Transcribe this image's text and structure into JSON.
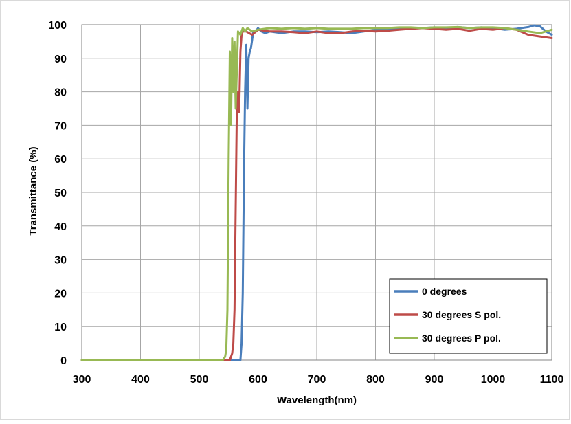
{
  "chart_data": {
    "type": "line",
    "title": "",
    "xlabel": "Wavelength(nm)",
    "ylabel": "Transmittance (%)",
    "xlim": [
      300,
      1100
    ],
    "ylim": [
      0,
      100
    ],
    "xticks": [
      "300",
      "400",
      "500",
      "600",
      "700",
      "800",
      "900",
      "1000",
      "1100"
    ],
    "yticks": [
      "0",
      "10",
      "20",
      "30",
      "40",
      "50",
      "60",
      "70",
      "80",
      "90",
      "100"
    ],
    "grid": true,
    "legend_position": "bottom-right",
    "series": [
      {
        "name": "0 degrees",
        "color": "#4a7ebb",
        "x": [
          300,
          560,
          570,
          572,
          574,
          576,
          578,
          580,
          582,
          584,
          586,
          588,
          592,
          596,
          600,
          606,
          612,
          620,
          640,
          660,
          680,
          700,
          720,
          740,
          760,
          780,
          800,
          820,
          840,
          860,
          880,
          900,
          920,
          940,
          960,
          980,
          1000,
          1020,
          1040,
          1060,
          1070,
          1080,
          1090,
          1100
        ],
        "y": [
          0,
          0,
          0,
          5,
          20,
          55,
          80,
          94,
          75,
          90,
          92,
          93,
          98,
          98,
          99,
          98,
          97.5,
          98,
          97.5,
          98,
          98,
          97.8,
          98,
          97.8,
          97.5,
          98,
          98.5,
          98.5,
          98.8,
          99,
          99,
          99.2,
          99,
          99.3,
          99,
          99.2,
          99,
          98.5,
          98.8,
          99.3,
          99.8,
          99.5,
          98,
          97
        ]
      },
      {
        "name": "30 degrees S pol.",
        "color": "#be4b48",
        "x": [
          300,
          545,
          552,
          556,
          558,
          560,
          562,
          564,
          566,
          568,
          570,
          572,
          574,
          576,
          580,
          590,
          600,
          620,
          640,
          660,
          680,
          700,
          720,
          740,
          760,
          780,
          800,
          820,
          840,
          860,
          880,
          900,
          920,
          940,
          960,
          980,
          1000,
          1020,
          1040,
          1060,
          1080,
          1100
        ],
        "y": [
          0,
          0,
          0,
          2,
          5,
          15,
          45,
          75,
          80,
          74,
          92,
          97,
          98,
          98,
          98,
          97,
          98.5,
          98,
          98,
          97.8,
          97.5,
          98,
          97.5,
          97.5,
          98,
          98.2,
          98,
          98.2,
          98.5,
          98.8,
          99,
          98.8,
          98.5,
          98.8,
          98.2,
          98.8,
          98.5,
          99,
          98.5,
          97,
          96.5,
          96
        ]
      },
      {
        "name": "30 degrees P pol.",
        "color": "#98b954",
        "x": [
          300,
          535,
          540,
          544,
          546,
          548,
          550,
          552,
          554,
          556,
          558,
          560,
          562,
          566,
          570,
          574,
          578,
          582,
          590,
          600,
          620,
          640,
          660,
          680,
          700,
          720,
          740,
          760,
          780,
          800,
          820,
          840,
          860,
          880,
          900,
          920,
          940,
          960,
          980,
          1000,
          1020,
          1040,
          1060,
          1080,
          1100
        ],
        "y": [
          0,
          0,
          0,
          1,
          3,
          15,
          60,
          92,
          70,
          96,
          80,
          95,
          75,
          98,
          97,
          99,
          98,
          99,
          98,
          98.5,
          99,
          98.8,
          99,
          98.8,
          99,
          98.8,
          98.8,
          98.8,
          99,
          99,
          99,
          99.2,
          99.2,
          99,
          99.2,
          99.2,
          99.3,
          99,
          99.2,
          99.2,
          99,
          98.5,
          98,
          97.5,
          98.5
        ]
      }
    ]
  }
}
